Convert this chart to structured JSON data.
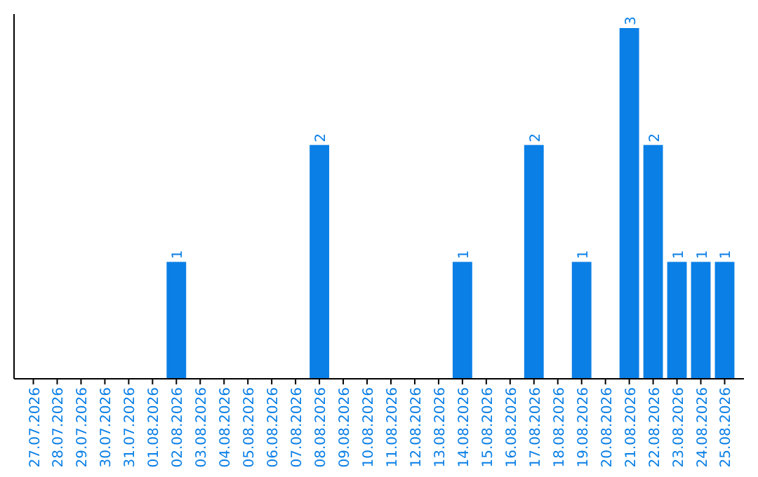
{
  "chart_data": {
    "type": "bar",
    "categories": [
      "27.07.2026",
      "28.07.2026",
      "29.07.2026",
      "30.07.2026",
      "31.07.2026",
      "01.08.2026",
      "02.08.2026",
      "03.08.2026",
      "04.08.2026",
      "05.08.2026",
      "06.08.2026",
      "07.08.2026",
      "08.08.2026",
      "09.08.2026",
      "10.08.2026",
      "11.08.2026",
      "12.08.2026",
      "13.08.2026",
      "14.08.2026",
      "15.08.2026",
      "16.08.2026",
      "17.08.2026",
      "18.08.2026",
      "19.08.2026",
      "20.08.2026",
      "21.08.2026",
      "22.08.2026",
      "23.08.2026",
      "24.08.2026",
      "25.08.2026"
    ],
    "values": [
      0,
      0,
      0,
      0,
      0,
      0,
      1,
      0,
      0,
      0,
      0,
      0,
      2,
      0,
      0,
      0,
      0,
      0,
      1,
      0,
      0,
      2,
      0,
      1,
      0,
      3,
      2,
      1,
      1,
      1
    ],
    "value_labels": [
      null,
      null,
      null,
      null,
      null,
      null,
      "1",
      null,
      null,
      null,
      null,
      null,
      "2",
      null,
      null,
      null,
      null,
      null,
      "1",
      null,
      null,
      "2",
      null,
      "1",
      null,
      "3",
      "2",
      "1",
      "1",
      "1"
    ],
    "color": "#0a7fe6",
    "tick_labels": "x"
  }
}
